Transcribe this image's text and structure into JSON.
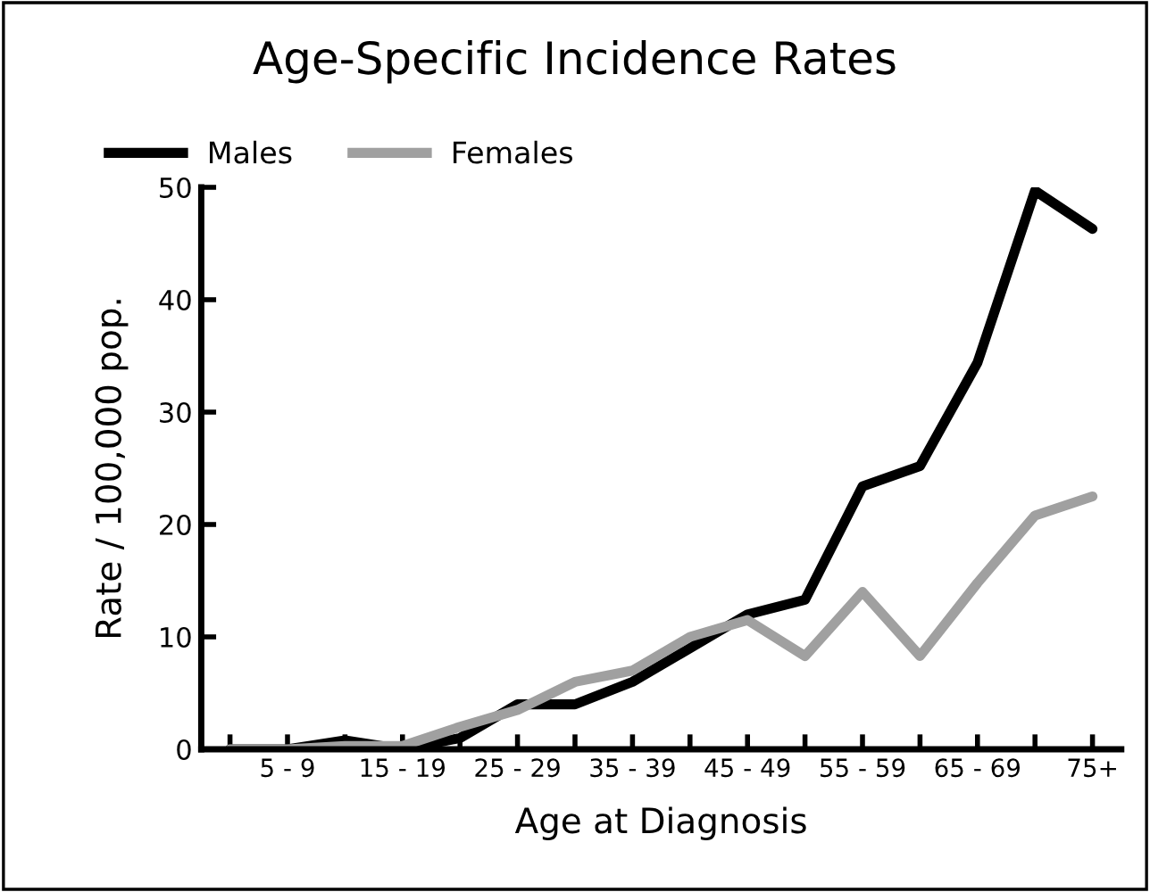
{
  "chart_data": {
    "type": "line",
    "title": "Age-Specific Incidence Rates",
    "xlabel": "Age at Diagnosis",
    "ylabel": "Rate / 100,000 pop.",
    "categories": [
      null,
      "5 - 9",
      null,
      "15 - 19",
      null,
      "25 - 29",
      null,
      "35 - 39",
      null,
      "45 - 49",
      null,
      "55 - 59",
      null,
      "65 - 69",
      null,
      "75+"
    ],
    "series": [
      {
        "name": "Males",
        "color": "#000000",
        "values": [
          0,
          0,
          0.8,
          0,
          1,
          4,
          4,
          6,
          9,
          12,
          13.3,
          23.4,
          25.2,
          34.4,
          49.7,
          46.3
        ]
      },
      {
        "name": "Females",
        "color": "#a0a0a0",
        "values": [
          0,
          0,
          0.3,
          0.3,
          2,
          3.5,
          6,
          7,
          10,
          11.5,
          8.3,
          14,
          8.3,
          14.8,
          20.8,
          22.5
        ]
      }
    ],
    "ylim": [
      0,
      50
    ],
    "yticks": [
      0,
      10,
      20,
      30,
      40,
      50
    ],
    "grid": false,
    "legend": "top left",
    "marker": "none",
    "line_style": "solid"
  }
}
